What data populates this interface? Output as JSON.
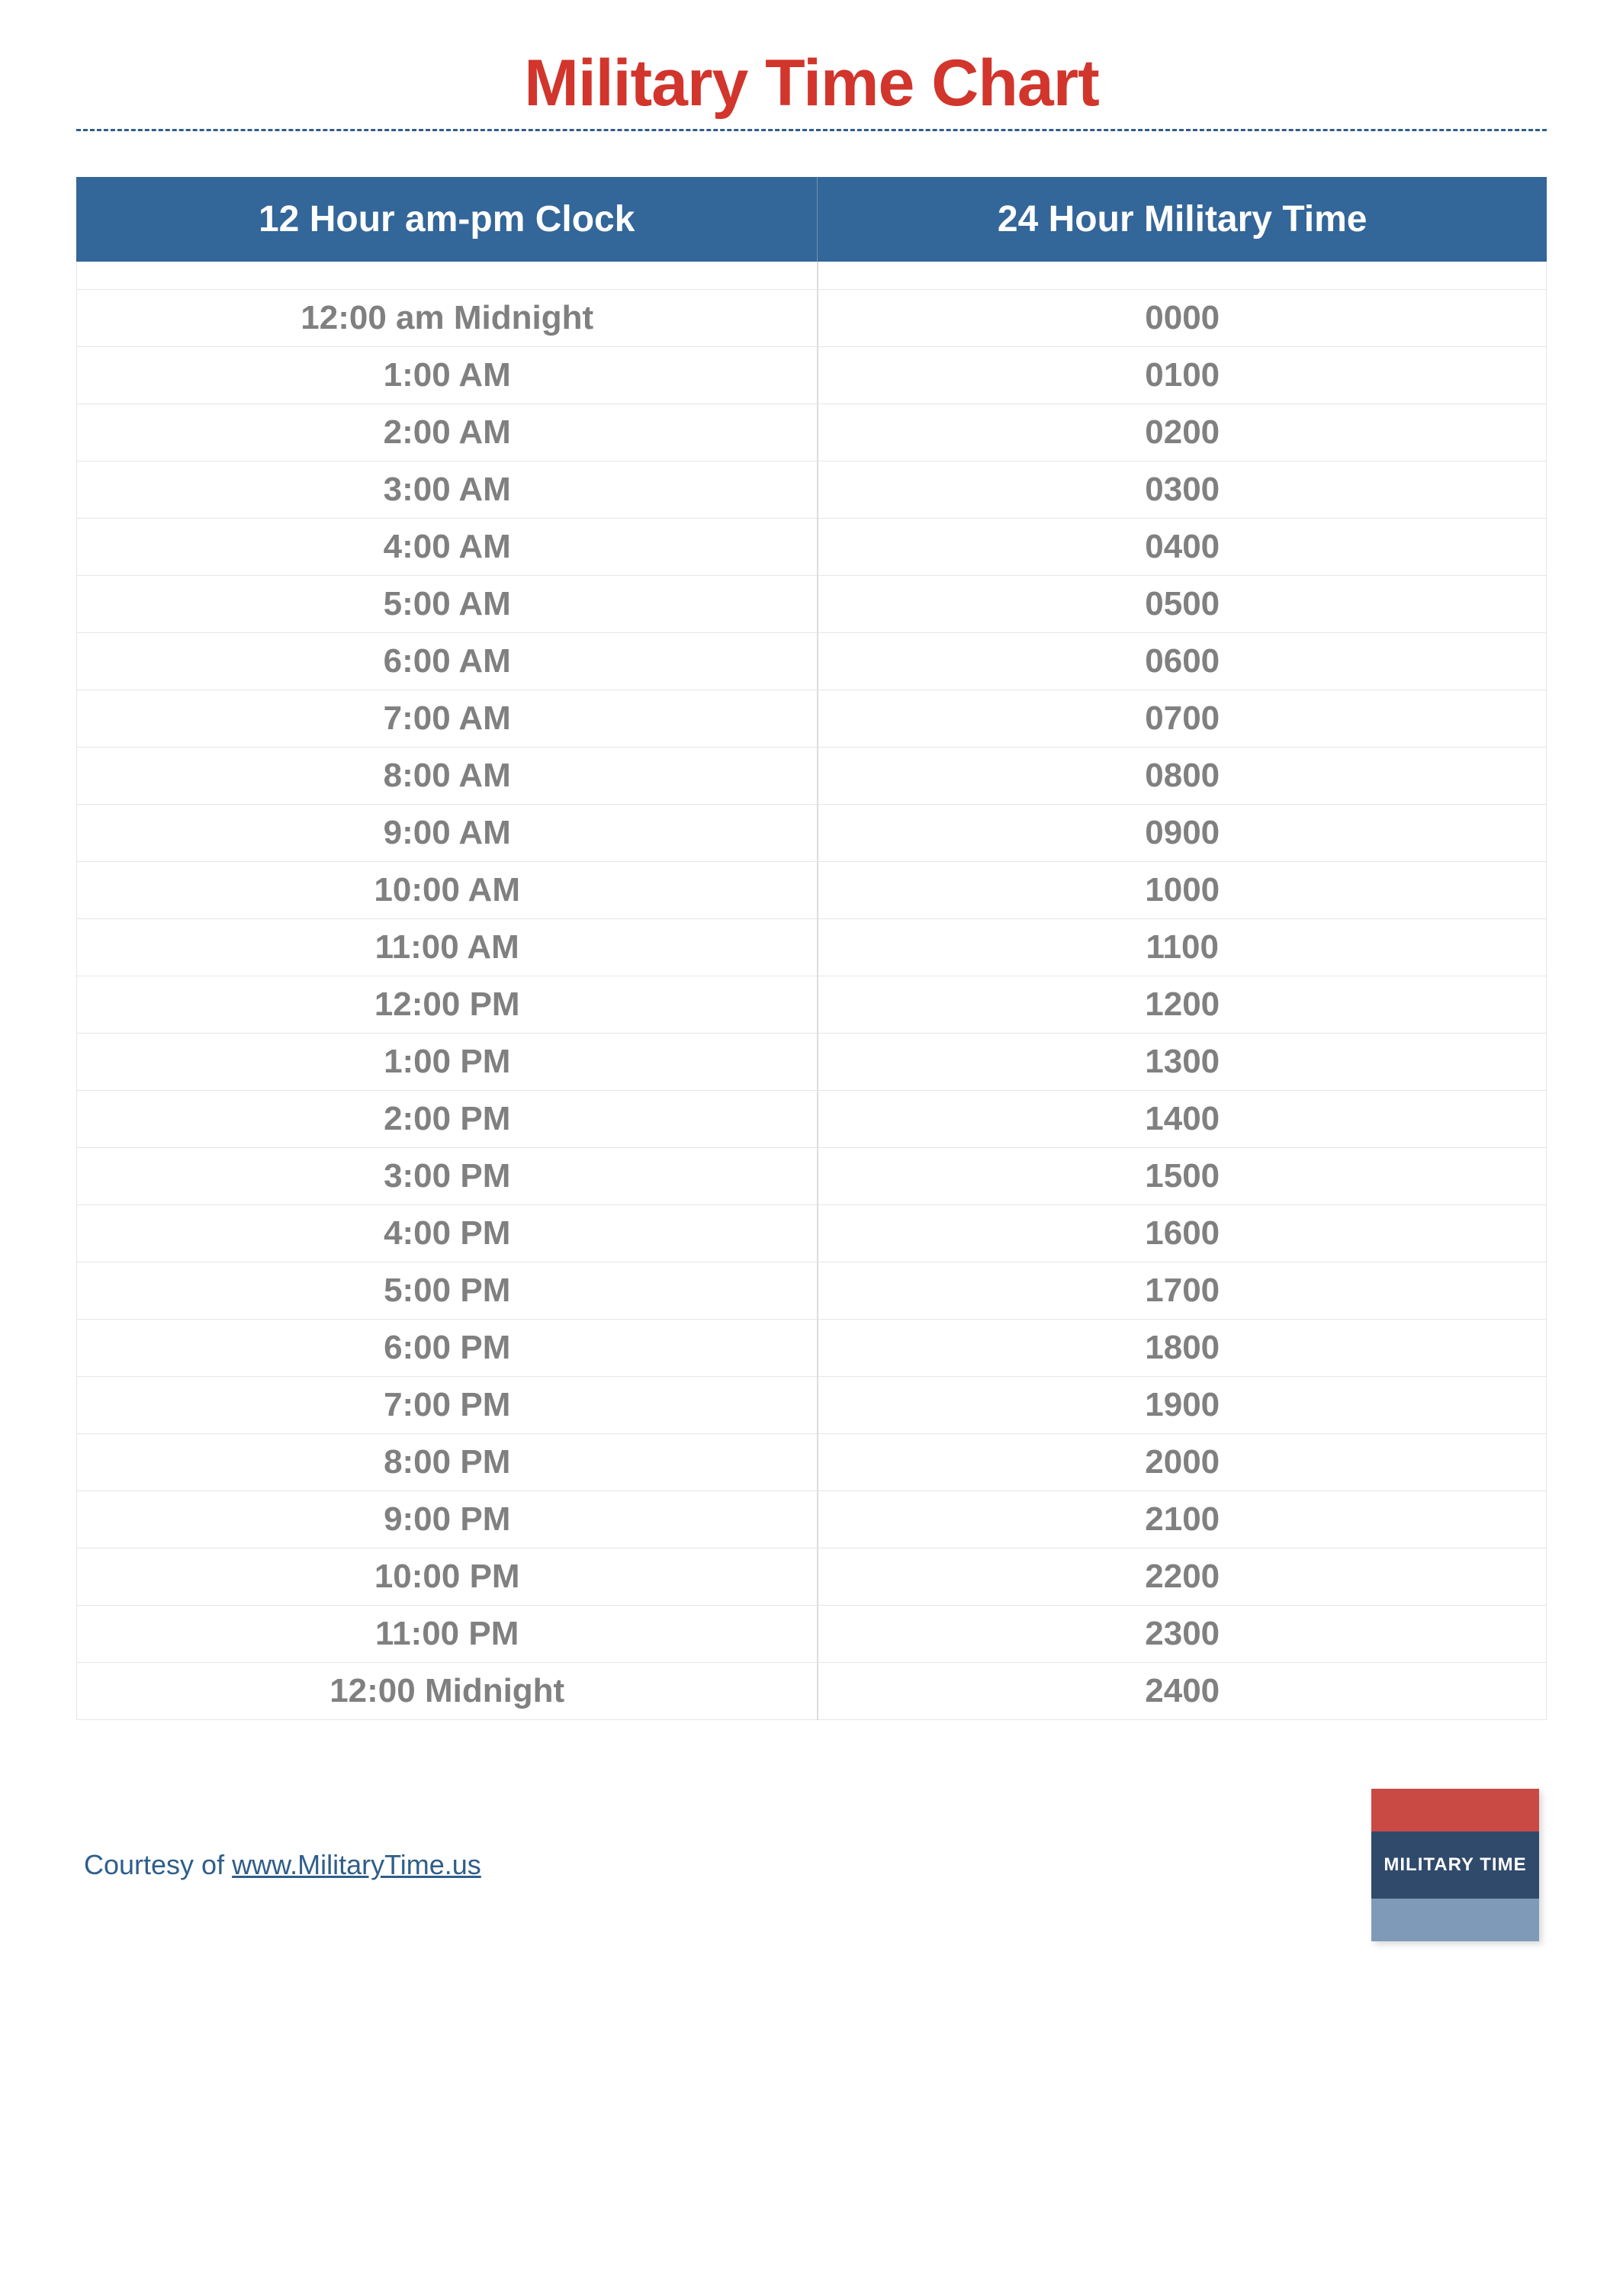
{
  "title": "Military Time Chart",
  "colors": {
    "title": "#d1352c",
    "rule": "#2f5e8a",
    "header_bg": "#336699",
    "header_text": "#ffffff",
    "row_text": "#808080",
    "border": "#e6e6e6",
    "divider": "#dcdcdc",
    "courtesy_text": "#2f5e8a",
    "logo_top": "#c94a45",
    "logo_mid": "#2f4a6b",
    "logo_bot": "#7f9ab8"
  },
  "table": {
    "columns": [
      "12 Hour am-pm Clock",
      "24 Hour Military Time"
    ],
    "rows": [
      [
        "12:00 am Midnight",
        "0000"
      ],
      [
        "1:00 AM",
        "0100"
      ],
      [
        "2:00 AM",
        "0200"
      ],
      [
        "3:00 AM",
        "0300"
      ],
      [
        "4:00 AM",
        "0400"
      ],
      [
        "5:00 AM",
        "0500"
      ],
      [
        "6:00 AM",
        "0600"
      ],
      [
        "7:00 AM",
        "0700"
      ],
      [
        "8:00 AM",
        "0800"
      ],
      [
        "9:00 AM",
        "0900"
      ],
      [
        "10:00 AM",
        "1000"
      ],
      [
        "11:00 AM",
        "1100"
      ],
      [
        "12:00 PM",
        "1200"
      ],
      [
        "1:00 PM",
        "1300"
      ],
      [
        "2:00 PM",
        "1400"
      ],
      [
        "3:00 PM",
        "1500"
      ],
      [
        "4:00 PM",
        "1600"
      ],
      [
        "5:00 PM",
        "1700"
      ],
      [
        "6:00 PM",
        "1800"
      ],
      [
        "7:00 PM",
        "1900"
      ],
      [
        "8:00 PM",
        "2000"
      ],
      [
        "9:00 PM",
        "2100"
      ],
      [
        "10:00 PM",
        "2200"
      ],
      [
        "11:00 PM",
        "2300"
      ],
      [
        "12:00 Midnight",
        "2400"
      ]
    ]
  },
  "footer": {
    "courtesy_prefix": "Courtesy of ",
    "courtesy_link_text": "www.MilitaryTime.us",
    "logo_text": "MILITARY TIME"
  }
}
